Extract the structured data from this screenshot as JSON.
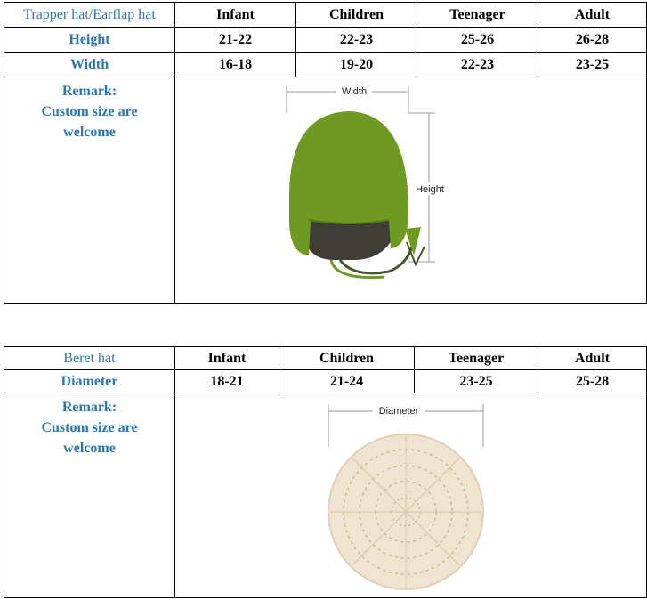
{
  "trapper": {
    "type_label": "Trapper hat/Earflap hat",
    "headers": [
      "Infant",
      "Children",
      "Teenager",
      "Adult"
    ],
    "rows": [
      {
        "label": "Height",
        "values": [
          "21-22",
          "22-23",
          "25-26",
          "26-28"
        ]
      },
      {
        "label": "Width",
        "values": [
          "16-18",
          "19-20",
          "22-23",
          "23-25"
        ]
      }
    ],
    "remark": [
      "Remark:",
      "Custom size are",
      "welcome"
    ],
    "image": {
      "width_label": "Width",
      "height_label": "Height",
      "color": "#6f9a22"
    }
  },
  "beret": {
    "type_label": "Beret hat",
    "headers": [
      "Infant",
      "Children",
      "Teenager",
      "Adult"
    ],
    "rows": [
      {
        "label": "Diameter",
        "values": [
          "18-21",
          "21-24",
          "23-25",
          "25-28"
        ]
      }
    ],
    "remark": [
      "Remark:",
      "Custom size are",
      "welcome"
    ],
    "image": {
      "diameter_label": "Diameter",
      "color": "#efe4cf"
    }
  }
}
